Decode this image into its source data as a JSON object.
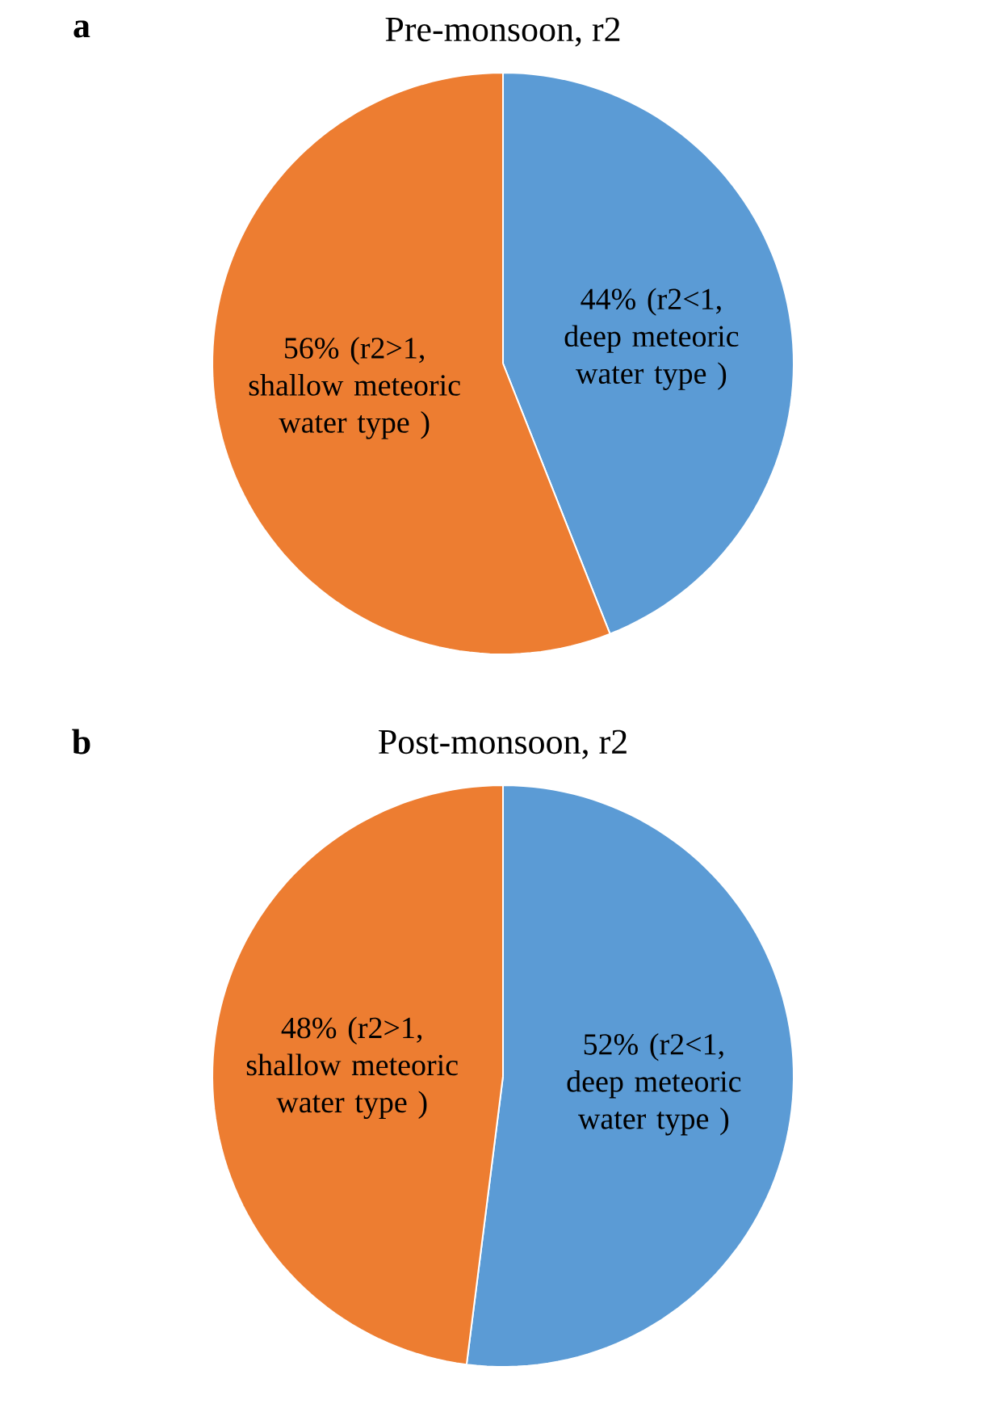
{
  "chart_data": [
    {
      "type": "pie",
      "title": "Pre-monsoon, r2",
      "annotations": [
        "a"
      ],
      "categories": [
        "(r2<1, deep meteoric water type )",
        "(r2>1, shallow meteoric water type )"
      ],
      "values": [
        44,
        56
      ],
      "value_labels": [
        "44%",
        "56%"
      ],
      "colors": [
        "#5b9bd5",
        "#ed7d31"
      ]
    },
    {
      "type": "pie",
      "title": "Post-monsoon, r2",
      "annotations": [
        "b"
      ],
      "categories": [
        "(r2<1, deep meteoric water type )",
        "(r2>1, shallow meteoric water type )"
      ],
      "values": [
        52,
        48
      ],
      "value_labels": [
        "52%",
        "48%"
      ],
      "colors": [
        "#5b9bd5",
        "#ed7d31"
      ]
    }
  ]
}
